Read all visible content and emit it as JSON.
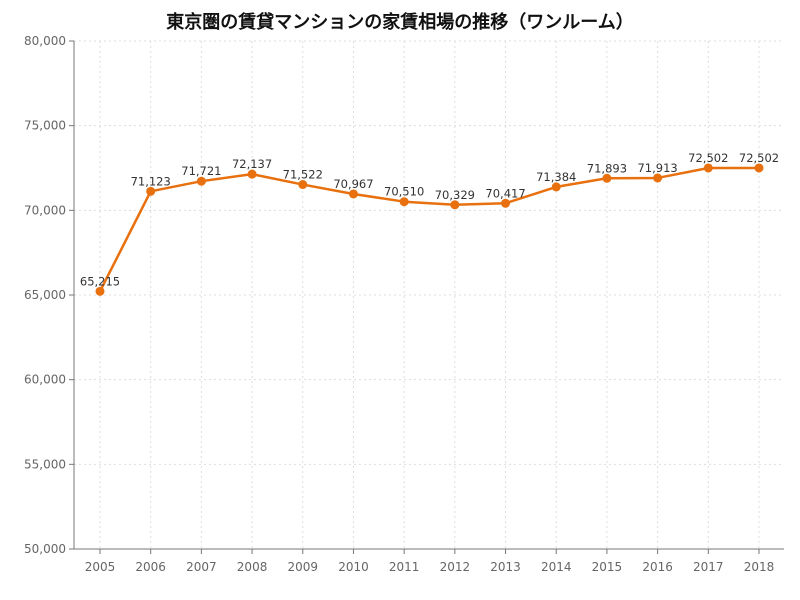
{
  "chart_data": {
    "type": "line",
    "title": "東京圏の賃貸マンションの家賃相場の推移（ワンルーム）",
    "xlabel": "",
    "ylabel": "",
    "categories": [
      "2005",
      "2006",
      "2007",
      "2008",
      "2009",
      "2010",
      "2011",
      "2012",
      "2013",
      "2014",
      "2015",
      "2016",
      "2017",
      "2018"
    ],
    "series": [
      {
        "values": [
          65215,
          71123,
          71721,
          72137,
          71522,
          70967,
          70510,
          70329,
          70417,
          71384,
          71893,
          71913,
          72502,
          72502
        ],
        "value_labels": [
          "65,215",
          "71,123",
          "71,721",
          "72,137",
          "71,522",
          "70,967",
          "70,510",
          "70,329",
          "70,417",
          "71,384",
          "71,893",
          "71,913",
          "72,502",
          "72,502"
        ],
        "color": "#E8700E"
      }
    ],
    "ylim": [
      50000,
      80000
    ],
    "y_ticks": [
      50000,
      55000,
      60000,
      65000,
      70000,
      75000,
      80000
    ],
    "y_tick_labels": [
      "50,000",
      "55,000",
      "60,000",
      "65,000",
      "70,000",
      "75,000",
      "80,000"
    ],
    "grid": true,
    "grid_color": "#dddddd",
    "axis_color": "#777777"
  }
}
